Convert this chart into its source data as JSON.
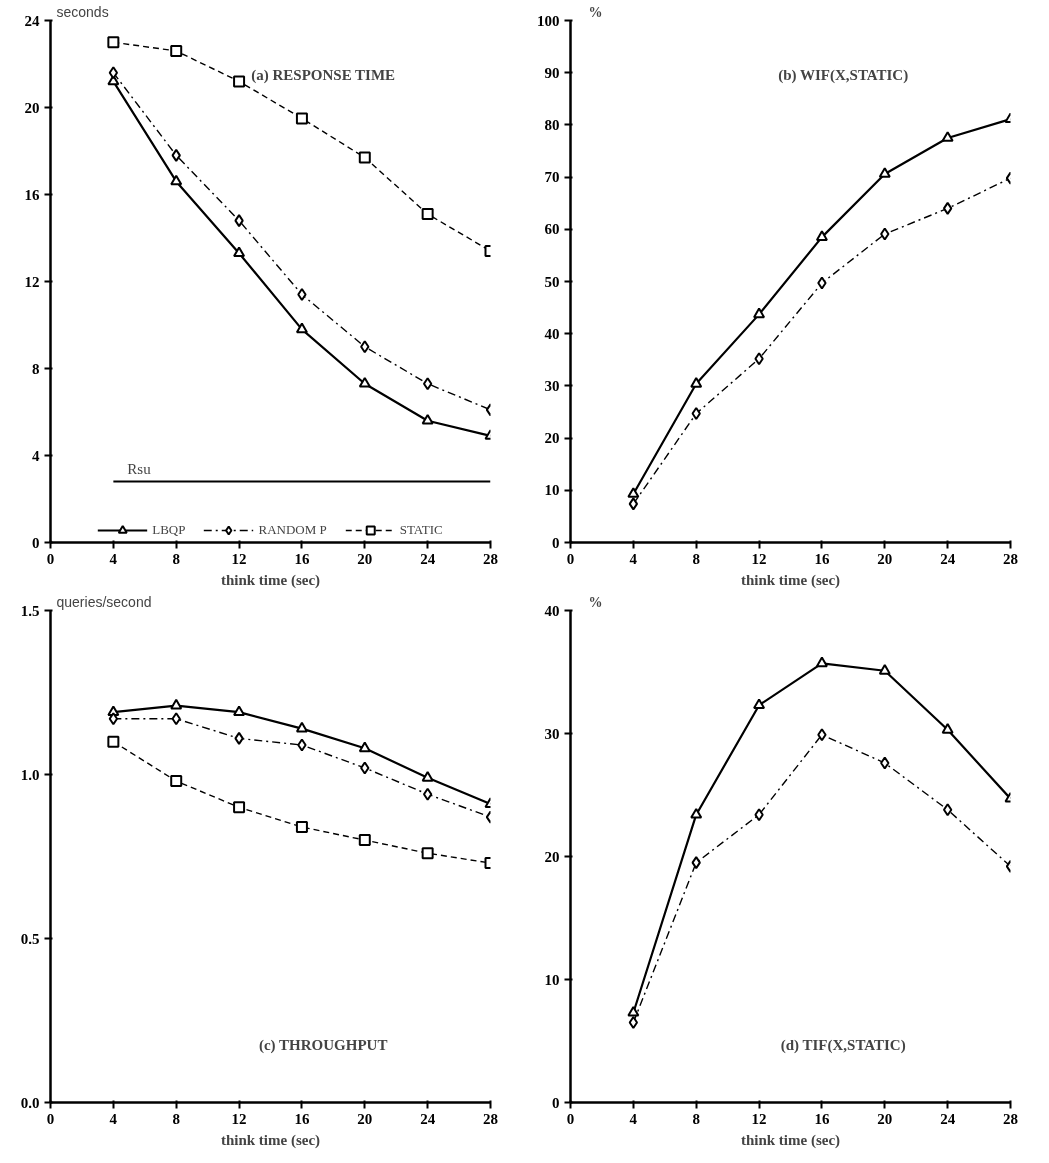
{
  "chart_data": [
    {
      "type": "line",
      "title": "(a) RESPONSE TIME",
      "xlabel": "think time (sec)",
      "ylabel": "seconds",
      "x": [
        4,
        8,
        12,
        16,
        20,
        24,
        28
      ],
      "xlim": [
        0,
        28
      ],
      "xticks": [
        0,
        4,
        8,
        12,
        16,
        20,
        24,
        28
      ],
      "ylim": [
        0,
        24
      ],
      "yticks": [
        0,
        4,
        8,
        12,
        16,
        20,
        24
      ],
      "legend": "bottom",
      "series": [
        {
          "name": "LBQP",
          "color": "#000000",
          "marker": "triangle",
          "line_style": "solid",
          "values": [
            21.2,
            16.6,
            13.3,
            9.8,
            7.3,
            5.6,
            4.9
          ]
        },
        {
          "name": "RANDOM P",
          "color": "#000000",
          "marker": "diamond",
          "line_style": "dashdot",
          "values": [
            21.6,
            17.8,
            14.8,
            11.4,
            9.0,
            7.3,
            6.1
          ]
        },
        {
          "name": "STATIC",
          "color": "#000000",
          "marker": "square",
          "line_style": "dashed",
          "values": [
            23.0,
            22.6,
            21.2,
            19.5,
            17.7,
            15.1,
            13.4
          ]
        }
      ],
      "ref_lines": [
        {
          "axis": "y",
          "value": 2.8,
          "label": "Rsu",
          "color": "#000000",
          "line_style": "solid"
        }
      ]
    },
    {
      "type": "line",
      "title": "(b) WIF(X,STATIC)",
      "xlabel": "think time (sec)",
      "ylabel": "%",
      "x": [
        4,
        8,
        12,
        16,
        20,
        24,
        28
      ],
      "xlim": [
        0,
        28
      ],
      "xticks": [
        0,
        4,
        8,
        12,
        16,
        20,
        24,
        28
      ],
      "ylim": [
        0,
        100
      ],
      "yticks": [
        0,
        10,
        20,
        30,
        40,
        50,
        60,
        70,
        80,
        90,
        100
      ],
      "series": [
        {
          "color": "#000000",
          "marker": "triangle",
          "line_style": "solid",
          "values": [
            9.3,
            30.4,
            43.7,
            58.5,
            70.6,
            77.5,
            81.1
          ]
        },
        {
          "color": "#000000",
          "marker": "diamond",
          "line_style": "dashdot",
          "values": [
            7.4,
            24.7,
            35.2,
            49.7,
            59.1,
            64.0,
            69.8
          ]
        }
      ]
    },
    {
      "type": "line",
      "title": "(c) THROUGHPUT",
      "xlabel": "think time (sec)",
      "ylabel": "queries/second",
      "x": [
        4,
        8,
        12,
        16,
        20,
        24,
        28
      ],
      "xlim": [
        0,
        28
      ],
      "xticks": [
        0,
        4,
        8,
        12,
        16,
        20,
        24,
        28
      ],
      "ylim": [
        0,
        1.5
      ],
      "yticks": [
        {
          "value": 0,
          "label": "0.0"
        },
        0.5,
        {
          "value": 1,
          "label": "1.0"
        },
        1.5
      ],
      "series": [
        {
          "color": "#000000",
          "marker": "triangle",
          "line_style": "solid",
          "values": [
            1.19,
            1.21,
            1.19,
            1.14,
            1.08,
            0.99,
            0.91
          ]
        },
        {
          "color": "#000000",
          "marker": "diamond",
          "line_style": "dashdot",
          "values": [
            1.17,
            1.17,
            1.11,
            1.09,
            1.02,
            0.94,
            0.87
          ]
        },
        {
          "color": "#000000",
          "marker": "square",
          "line_style": "dashed",
          "values": [
            1.1,
            0.98,
            0.9,
            0.84,
            0.8,
            0.76,
            0.73
          ]
        }
      ]
    },
    {
      "type": "line",
      "title": "(d) TIF(X,STATIC)",
      "xlabel": "think time (sec)",
      "ylabel": "%",
      "x": [
        4,
        8,
        12,
        16,
        20,
        24,
        28
      ],
      "xlim": [
        0,
        28
      ],
      "xticks": [
        0,
        4,
        8,
        12,
        16,
        20,
        24,
        28
      ],
      "ylim": [
        0,
        40
      ],
      "yticks": [
        0,
        10,
        20,
        30,
        40
      ],
      "series": [
        {
          "color": "#000000",
          "marker": "triangle",
          "line_style": "solid",
          "values": [
            7.3,
            23.4,
            32.3,
            35.7,
            35.1,
            30.3,
            24.7
          ]
        },
        {
          "color": "#000000",
          "marker": "diamond",
          "line_style": "dashdot",
          "values": [
            6.5,
            19.5,
            23.4,
            29.9,
            27.6,
            23.8,
            19.2
          ]
        }
      ]
    }
  ]
}
